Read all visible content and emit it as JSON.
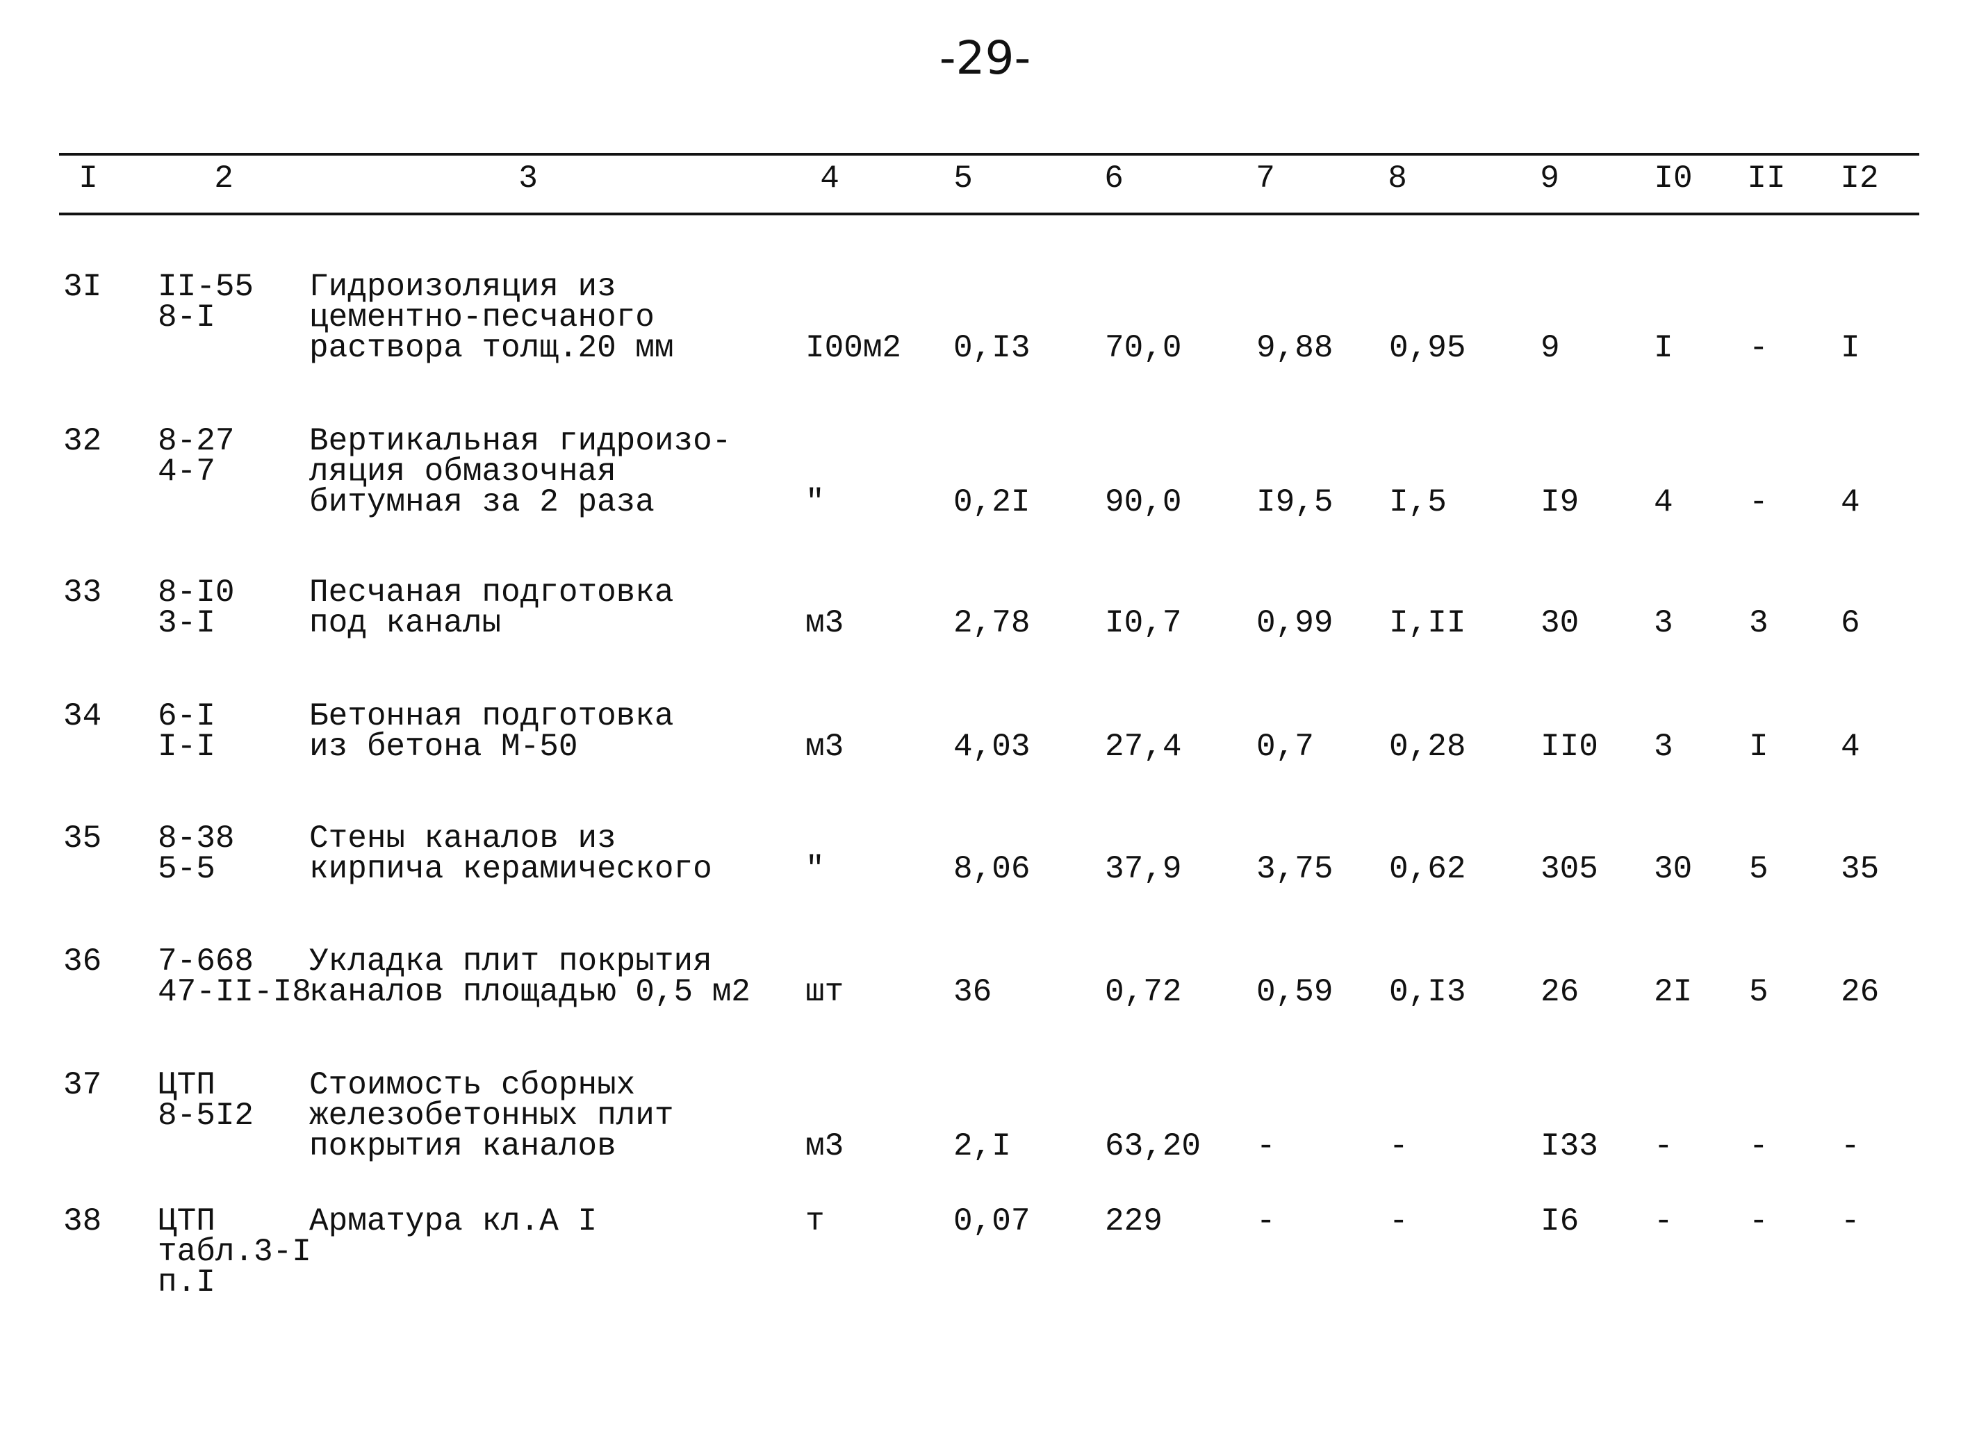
{
  "page_number": "-29-",
  "table": {
    "header": [
      "I",
      "2",
      "3",
      "4",
      "5",
      "6",
      "7",
      "8",
      "9",
      "I0",
      "II",
      "I2"
    ],
    "rows": [
      [
        "3I",
        [
          "II-55",
          "8-I"
        ],
        [
          "Гидроизоляция из",
          "цементно-песчаного",
          "раствора толщ.20 мм"
        ],
        "I00м2",
        "0,I3",
        "70,0",
        "9,88",
        "0,95",
        "9",
        "I",
        "-",
        "I"
      ],
      [
        "32",
        [
          "8-27",
          "4-7"
        ],
        [
          "Вертикальная гидроизо-",
          "ляция обмазочная",
          "битумная за 2 раза"
        ],
        "\"",
        "0,2I",
        "90,0",
        "I9,5",
        "I,5",
        "I9",
        "4",
        "-",
        "4"
      ],
      [
        "33",
        [
          "8-I0",
          "3-I"
        ],
        [
          "Песчаная подготовка",
          "под каналы"
        ],
        "м3",
        "2,78",
        "I0,7",
        "0,99",
        "I,II",
        "30",
        "3",
        "3",
        "6"
      ],
      [
        "34",
        [
          "6-I",
          "I-I"
        ],
        [
          "Бетонная подготовка",
          "из бетона М-50"
        ],
        "м3",
        "4,03",
        "27,4",
        "0,7",
        "0,28",
        "II0",
        "3",
        "I",
        "4"
      ],
      [
        "35",
        [
          "8-38",
          "5-5"
        ],
        [
          "Стены каналов из",
          "кирпича керамического"
        ],
        "\"",
        "8,06",
        "37,9",
        "3,75",
        "0,62",
        "305",
        "30",
        "5",
        "35"
      ],
      [
        "36",
        [
          "7-668",
          "47-II-I8"
        ],
        [
          "Укладка плит покрытия",
          "каналов площадью 0,5 м2"
        ],
        "шт",
        "36",
        "0,72",
        "0,59",
        "0,I3",
        "26",
        "2I",
        "5",
        "26"
      ],
      [
        "37",
        [
          "ЦТП",
          "8-5I2"
        ],
        [
          "Стоимость сборных",
          "железобетонных плит",
          "покрытия каналов"
        ],
        "м3",
        "2,I",
        "63,20",
        "-",
        "-",
        "I33",
        "-",
        "-",
        "-"
      ],
      [
        "38",
        [
          "ЦТП",
          "табл.3-I",
          "п.I"
        ],
        [
          "Арматура кл.А I"
        ],
        "т",
        "0,07",
        "229",
        "-",
        "-",
        "I6",
        "-",
        "-",
        "-"
      ]
    ]
  }
}
